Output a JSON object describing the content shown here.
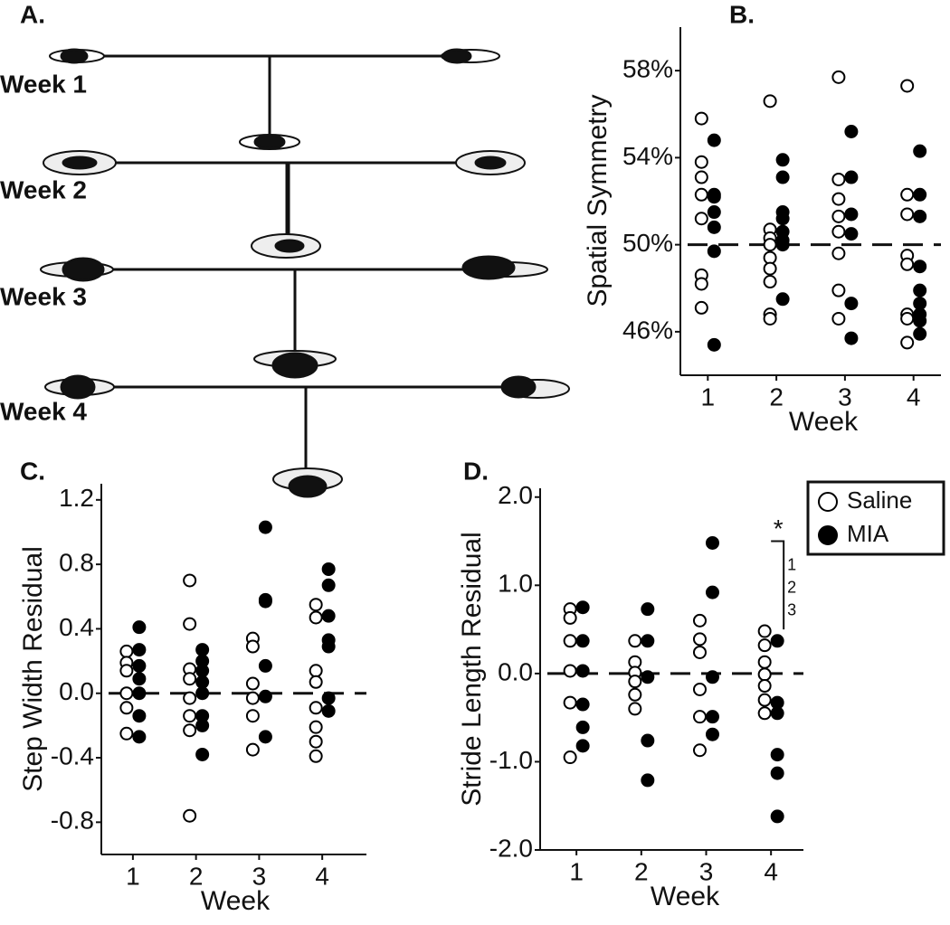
{
  "panel_a": {
    "label": "A.",
    "rows": [
      "Week 1",
      "Week 2",
      "Week 3",
      "Week 4"
    ]
  },
  "chart_data": [
    {
      "type": "scatter",
      "title": "B.",
      "y_label": "Spatial Symmetry",
      "x_label": "Week",
      "xlim": [
        0.6,
        4.4
      ],
      "xticks": [
        1,
        2,
        3,
        4
      ],
      "ylim": [
        44,
        60
      ],
      "yticks": [
        {
          "value": 46,
          "label": "46%"
        },
        {
          "value": 50,
          "label": "50%"
        },
        {
          "value": 54,
          "label": "54%"
        },
        {
          "value": 58,
          "label": "58%"
        }
      ],
      "reference_line": 50,
      "legend": false,
      "series": [
        {
          "name": "Saline",
          "color": "#000000",
          "marker": "open",
          "x": [
            1,
            1,
            1,
            1,
            1,
            1,
            1,
            1,
            2,
            2,
            2,
            2,
            2,
            2,
            2,
            2,
            2,
            3,
            3,
            3,
            3,
            3,
            3,
            3,
            3,
            4,
            4,
            4,
            4,
            4,
            4,
            4,
            4
          ],
          "values": [
            55.8,
            53.8,
            53.1,
            52.3,
            51.2,
            48.6,
            48.2,
            47.1,
            56.6,
            50.7,
            50.3,
            50.0,
            49.4,
            48.9,
            48.3,
            46.8,
            46.6,
            57.7,
            53.0,
            52.1,
            51.3,
            50.6,
            49.6,
            47.9,
            46.6,
            57.3,
            52.3,
            51.4,
            49.5,
            49.1,
            46.8,
            46.6,
            45.5
          ]
        },
        {
          "name": "MIA",
          "color": "#000000",
          "marker": "filled",
          "x": [
            1,
            1,
            1,
            1,
            1,
            1,
            1,
            2,
            2,
            2,
            2,
            2,
            2,
            2,
            2,
            3,
            3,
            3,
            3,
            3,
            3,
            4,
            4,
            4,
            4,
            4,
            4,
            4,
            4,
            4
          ],
          "values": [
            54.8,
            52.3,
            52.2,
            51.5,
            50.8,
            49.7,
            45.4,
            53.9,
            53.1,
            51.5,
            51.2,
            50.6,
            50.2,
            50.0,
            47.5,
            55.2,
            53.1,
            51.4,
            50.5,
            47.3,
            45.7,
            54.3,
            52.3,
            51.3,
            49.0,
            47.9,
            47.3,
            46.8,
            46.5,
            45.9
          ]
        }
      ]
    },
    {
      "type": "scatter",
      "title": "C.",
      "y_label": "Step Width Residual",
      "x_label": "Week",
      "xlim": [
        0.5,
        4.7
      ],
      "xticks": [
        1,
        2,
        3,
        4
      ],
      "ylim": [
        -1.0,
        1.3
      ],
      "yticks": [
        {
          "value": -0.8,
          "label": "-0.8"
        },
        {
          "value": -0.4,
          "label": "-0.4"
        },
        {
          "value": 0,
          "label": "0.0"
        },
        0.4,
        0.8,
        1.2
      ],
      "reference_line": 0,
      "legend": false,
      "series": [
        {
          "name": "Saline",
          "color": "#000000",
          "marker": "open",
          "x": [
            1,
            1,
            1,
            1,
            1,
            1,
            2,
            2,
            2,
            2,
            2,
            2,
            2,
            2,
            3,
            3,
            3,
            3,
            3,
            3,
            4,
            4,
            4,
            4,
            4,
            4,
            4,
            4
          ],
          "values": [
            0.26,
            0.19,
            0.14,
            0.0,
            -0.09,
            -0.25,
            0.7,
            0.43,
            0.15,
            0.09,
            -0.03,
            -0.14,
            -0.23,
            -0.76,
            0.34,
            0.29,
            0.06,
            -0.03,
            -0.14,
            -0.35,
            0.55,
            0.47,
            0.14,
            0.07,
            -0.09,
            -0.21,
            -0.3,
            -0.39
          ]
        },
        {
          "name": "MIA",
          "color": "#000000",
          "marker": "filled",
          "x": [
            1,
            1,
            1,
            1,
            1,
            1,
            1,
            2,
            2,
            2,
            2,
            2,
            2,
            2,
            2,
            3,
            3,
            3,
            3,
            3,
            3,
            4,
            4,
            4,
            4,
            4,
            4,
            4
          ],
          "values": [
            0.41,
            0.27,
            0.17,
            0.09,
            0.0,
            -0.14,
            -0.27,
            0.27,
            0.2,
            0.14,
            0.07,
            0.0,
            -0.14,
            -0.2,
            -0.38,
            1.03,
            0.58,
            0.57,
            0.17,
            -0.02,
            -0.27,
            0.77,
            0.67,
            0.48,
            0.33,
            0.29,
            -0.03,
            -0.11
          ]
        }
      ]
    },
    {
      "type": "scatter",
      "title": "D.",
      "y_label": "Stride Length Residual",
      "x_label": "Week",
      "xlim": [
        0.44,
        4.5
      ],
      "xticks": [
        1,
        2,
        3,
        4
      ],
      "ylim": [
        -2.0,
        2.1
      ],
      "yticks": [
        {
          "value": -2,
          "label": "-2.0"
        },
        {
          "value": -1,
          "label": "-1.0"
        },
        {
          "value": 0,
          "label": "0.0"
        },
        {
          "value": 1,
          "label": "1.0"
        },
        {
          "value": 2,
          "label": "2.0"
        }
      ],
      "reference_line": 0,
      "legend": "upper right",
      "annotations": [
        "*",
        "1",
        "2",
        "3"
      ],
      "series": [
        {
          "name": "Saline",
          "color": "#000000",
          "marker": "open",
          "x": [
            1,
            1,
            1,
            1,
            1,
            1,
            2,
            2,
            2,
            2,
            2,
            2,
            3,
            3,
            3,
            3,
            3,
            3,
            4,
            4,
            4,
            4,
            4,
            4,
            4
          ],
          "values": [
            0.73,
            0.63,
            0.37,
            0.03,
            -0.33,
            -0.95,
            0.37,
            0.13,
            0.01,
            -0.09,
            -0.24,
            -0.4,
            0.6,
            0.39,
            0.24,
            -0.18,
            -0.49,
            -0.87,
            0.48,
            0.32,
            0.13,
            -0.01,
            -0.14,
            -0.3,
            -0.45
          ]
        },
        {
          "name": "MIA",
          "color": "#000000",
          "marker": "filled",
          "x": [
            1,
            1,
            1,
            1,
            1,
            1,
            2,
            2,
            2,
            2,
            2,
            3,
            3,
            3,
            3,
            3,
            4,
            4,
            4,
            4,
            4,
            4
          ],
          "values": [
            0.75,
            0.37,
            0.03,
            -0.35,
            -0.61,
            -0.82,
            0.73,
            0.37,
            -0.04,
            -0.76,
            -1.21,
            1.48,
            0.92,
            -0.04,
            -0.49,
            -0.69,
            0.37,
            -0.33,
            -0.45,
            -0.92,
            -1.13,
            -1.62
          ]
        }
      ]
    }
  ]
}
